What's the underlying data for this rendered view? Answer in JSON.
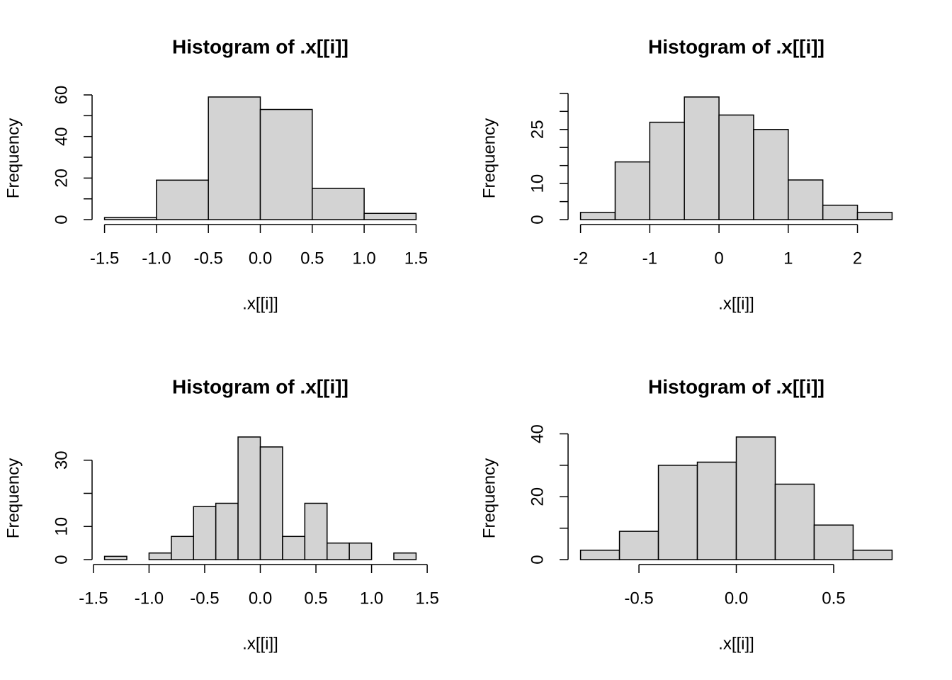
{
  "chart_data": [
    {
      "type": "histogram",
      "title": "Histogram of .x[[i]]",
      "x_label": ".x[[i]]",
      "y_label": "Frequency",
      "color": "#d3d3d3",
      "bins": [
        -1.5,
        -1.0,
        -0.5,
        0.0,
        0.5,
        1.0,
        1.5
      ],
      "values": [
        1,
        19,
        59,
        53,
        15,
        3
      ],
      "xlim": [
        -1.62,
        1.62
      ],
      "xticks": [
        -1.5,
        {
          "value": -1,
          "label": "-1.0"
        },
        -0.5,
        {
          "value": 0,
          "label": "0.0"
        },
        0.5,
        {
          "value": 1,
          "label": "1.0"
        },
        1.5
      ],
      "ylim": [
        -2.36,
        61.36
      ],
      "yticks": [
        0,
        20,
        40,
        60
      ],
      "yminor": [
        10,
        30,
        50
      ]
    },
    {
      "type": "histogram",
      "title": "Histogram of .x[[i]]",
      "x_label": ".x[[i]]",
      "y_label": "Frequency",
      "color": "#d3d3d3",
      "bins": [
        -2.0,
        -1.5,
        -1.0,
        -0.5,
        0.0,
        0.5,
        1.0,
        1.5,
        2.0,
        2.5
      ],
      "values": [
        2,
        16,
        27,
        34,
        29,
        25,
        11,
        4,
        2
      ],
      "xlim": [
        -2.18,
        2.68
      ],
      "xticks": [
        -2,
        -1,
        0,
        1,
        2
      ],
      "ylim": [
        -1.36,
        35.36
      ],
      "yticks": [
        0,
        10,
        25
      ],
      "yminor": [
        5,
        15,
        20,
        30,
        35
      ]
    },
    {
      "type": "histogram",
      "title": "Histogram of .x[[i]]",
      "x_label": ".x[[i]]",
      "y_label": "Frequency",
      "color": "#d3d3d3",
      "bins": [
        -1.4,
        -1.2,
        -1.0,
        -0.8,
        -0.6,
        -0.4,
        -0.2,
        0.0,
        0.2,
        0.4,
        0.6,
        0.8,
        1.0,
        1.2,
        1.4
      ],
      "values": [
        1,
        0,
        2,
        7,
        16,
        17,
        37,
        34,
        7,
        17,
        5,
        5,
        0,
        2
      ],
      "xlim": [
        -1.512,
        1.512
      ],
      "xticks": [
        -1.5,
        {
          "value": -1,
          "label": "-1.0"
        },
        -0.5,
        {
          "value": 0,
          "label": "0.0"
        },
        0.5,
        {
          "value": 1,
          "label": "1.0"
        },
        1.5
      ],
      "ylim": [
        -1.48,
        38.48
      ],
      "yticks": [
        0,
        10,
        30
      ],
      "yminor": [
        20
      ]
    },
    {
      "type": "histogram",
      "title": "Histogram of .x[[i]]",
      "x_label": ".x[[i]]",
      "y_label": "Frequency",
      "color": "#d3d3d3",
      "bins": [
        -0.8,
        -0.6,
        -0.4,
        -0.2,
        0.0,
        0.2,
        0.4,
        0.6,
        0.8
      ],
      "values": [
        3,
        9,
        30,
        31,
        39,
        24,
        11,
        3
      ],
      "xlim": [
        -0.864,
        0.864
      ],
      "xticks": [
        -0.5,
        {
          "value": 0,
          "label": "0.0"
        },
        0.5
      ],
      "ylim": [
        -1.56,
        40.56
      ],
      "yticks": [
        0,
        20,
        40
      ],
      "yminor": [
        10,
        30
      ]
    }
  ]
}
